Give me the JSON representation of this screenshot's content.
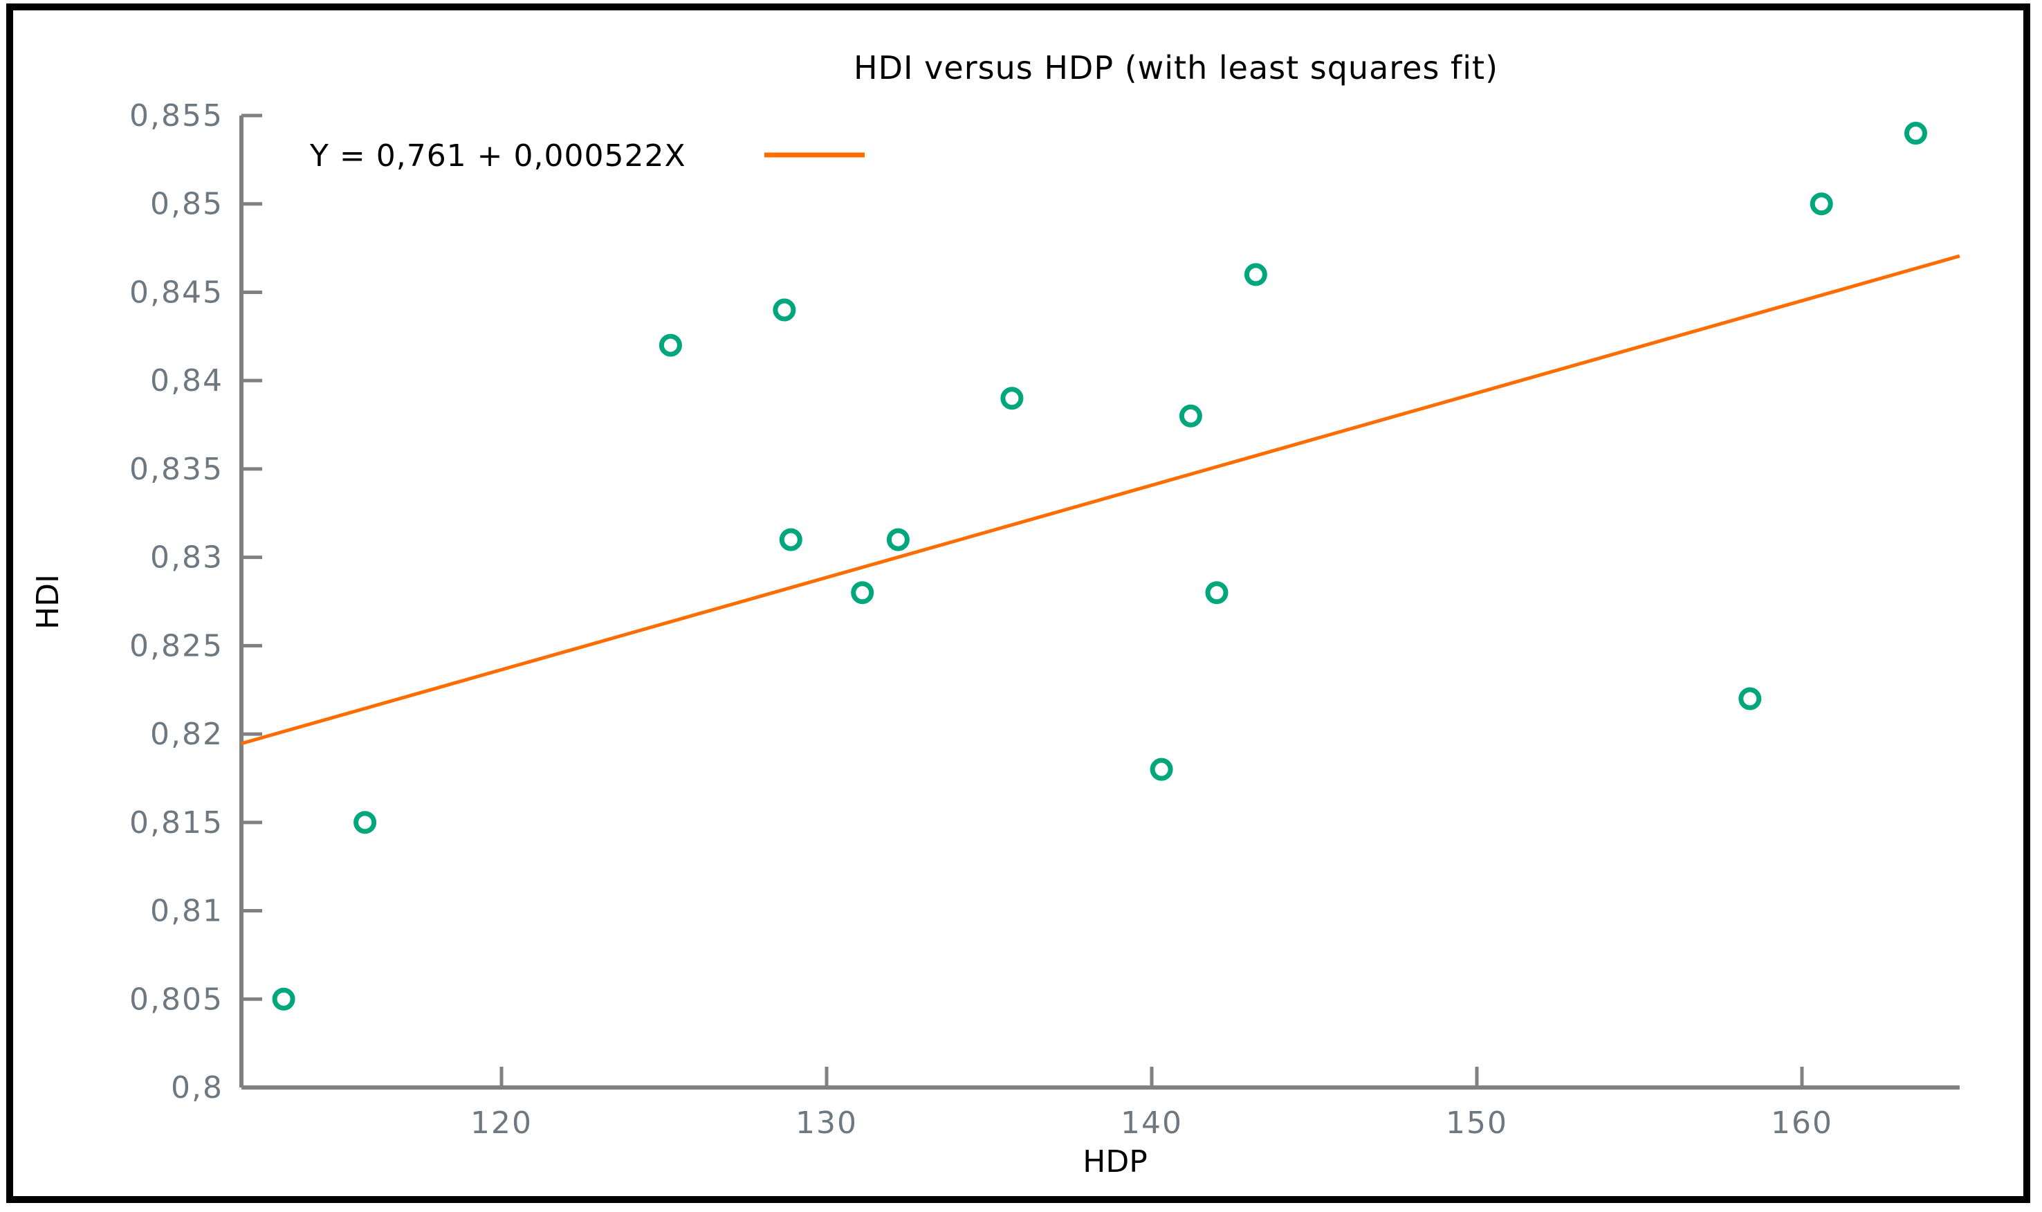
{
  "window": {
    "background": "#ffffff",
    "border_color": "#000000"
  },
  "chart_data": {
    "type": "scatter",
    "title": "HDI versus HDP (with least squares fit)",
    "xlabel": "HDP",
    "ylabel": "HDI",
    "decimal_separator": ",",
    "grid": false,
    "legend": {
      "label": "Y = 0,761 + 0,000522X",
      "position": "top-left"
    },
    "fit_line": {
      "intercept": 0.761,
      "slope": 0.000522,
      "color": "#FF6D00"
    },
    "point_color": "#00A67C",
    "axis_color": "#808080",
    "tick_label_color": "#6E7880",
    "text_color": "#000000",
    "xlim": [
      112.0,
      164.85
    ],
    "ylim": [
      0.8,
      0.855
    ],
    "x_ticks": [
      {
        "v": 120,
        "label": "120"
      },
      {
        "v": 130,
        "label": "130"
      },
      {
        "v": 140,
        "label": "140"
      },
      {
        "v": 150,
        "label": "150"
      },
      {
        "v": 160,
        "label": "160"
      }
    ],
    "y_ticks": [
      {
        "v": 0.8,
        "label": "0,8"
      },
      {
        "v": 0.805,
        "label": "0,805"
      },
      {
        "v": 0.81,
        "label": "0,81"
      },
      {
        "v": 0.815,
        "label": "0,815"
      },
      {
        "v": 0.82,
        "label": "0,82"
      },
      {
        "v": 0.825,
        "label": "0,825"
      },
      {
        "v": 0.83,
        "label": "0,83"
      },
      {
        "v": 0.835,
        "label": "0,835"
      },
      {
        "v": 0.84,
        "label": "0,84"
      },
      {
        "v": 0.845,
        "label": "0,845"
      },
      {
        "v": 0.85,
        "label": "0,85"
      },
      {
        "v": 0.855,
        "label": "0,855"
      }
    ],
    "points": [
      {
        "x": 113.3,
        "y": 0.805
      },
      {
        "x": 115.8,
        "y": 0.815
      },
      {
        "x": 125.2,
        "y": 0.842
      },
      {
        "x": 128.7,
        "y": 0.844
      },
      {
        "x": 128.9,
        "y": 0.831
      },
      {
        "x": 131.1,
        "y": 0.828
      },
      {
        "x": 132.2,
        "y": 0.831
      },
      {
        "x": 135.7,
        "y": 0.839
      },
      {
        "x": 140.3,
        "y": 0.818
      },
      {
        "x": 141.2,
        "y": 0.838
      },
      {
        "x": 142.0,
        "y": 0.828
      },
      {
        "x": 143.2,
        "y": 0.846
      },
      {
        "x": 158.4,
        "y": 0.822
      },
      {
        "x": 160.6,
        "y": 0.85
      },
      {
        "x": 163.5,
        "y": 0.854
      }
    ]
  }
}
